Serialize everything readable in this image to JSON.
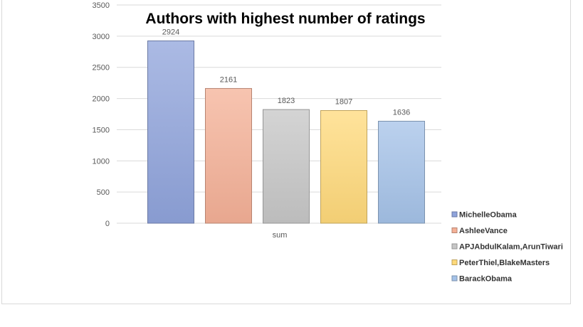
{
  "chart_data": {
    "type": "bar",
    "title": "Authors with highest number of ratings",
    "categories": [
      "sum"
    ],
    "series": [
      {
        "name": "MichelleObama",
        "values": [
          2924
        ],
        "color": "#8FA3DB"
      },
      {
        "name": "AshleeVance",
        "values": [
          2161
        ],
        "color": "#F4B096"
      },
      {
        "name": "APJAbdulKalam,ArunTiwari",
        "values": [
          1823
        ],
        "color": "#C6C6C6"
      },
      {
        "name": "PeterThiel,BlakeMasters",
        "values": [
          1807
        ],
        "color": "#FFD97A"
      },
      {
        "name": "BarackObama",
        "values": [
          1636
        ],
        "color": "#A4C2E8"
      }
    ],
    "ylim": [
      0,
      3500
    ],
    "yticks": [
      "0",
      "500",
      "1000",
      "1500",
      "2000",
      "2500",
      "3000",
      "3500"
    ],
    "grid": true,
    "legend_position": "right-bottom",
    "xlabel": "",
    "ylabel": ""
  }
}
